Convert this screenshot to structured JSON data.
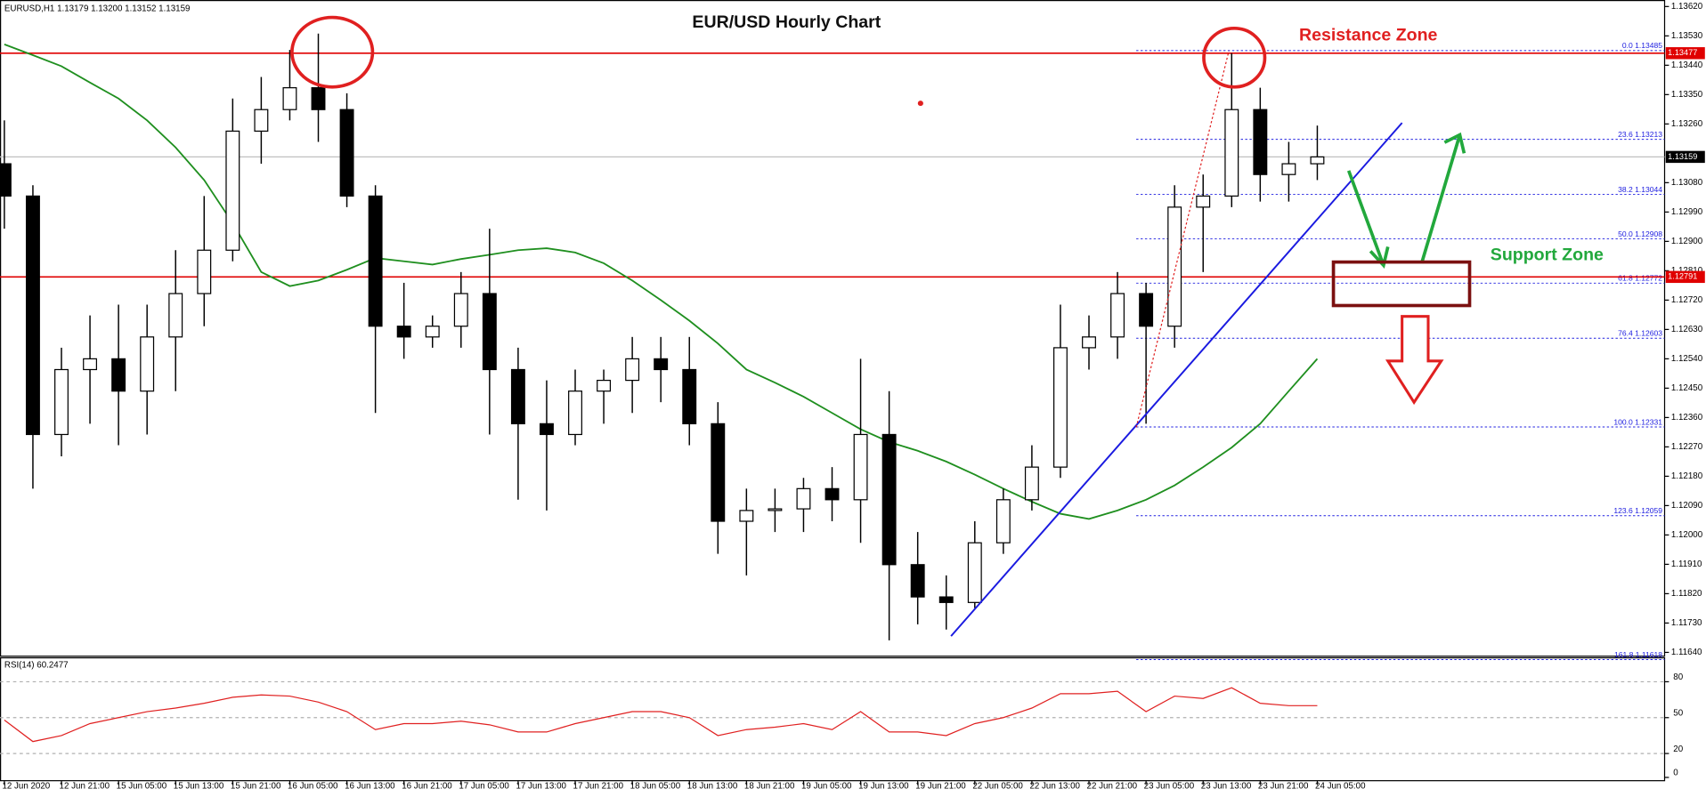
{
  "chart_data": [
    {
      "type": "candlestick",
      "title": "EUR/USD Hourly Chart",
      "header": "EURUSD,H1  1.13179 1.13200 1.13152 1.13159",
      "annotations": [
        "Resistance Zone",
        "Support Zone"
      ],
      "categories": [
        "12 Jun 2020",
        null,
        "12 Jun 21:00",
        null,
        "15 Jun 05:00",
        null,
        "15 Jun 13:00",
        null,
        "15 Jun 21:00",
        null,
        "16 Jun 05:00",
        null,
        "16 Jun 13:00",
        null,
        "16 Jun 21:00",
        null,
        "17 Jun 05:00",
        null,
        "17 Jun 13:00",
        null,
        "17 Jun 21:00",
        null,
        "18 Jun 05:00",
        null,
        "18 Jun 13:00",
        null,
        "18 Jun 21:00",
        null,
        "19 Jun 05:00",
        null,
        "19 Jun 13:00",
        null,
        "19 Jun 21:00",
        null,
        "22 Jun 05:00",
        null,
        "22 Jun 13:00",
        null,
        "22 Jun 21:00",
        null,
        "23 Jun 05:00",
        null,
        "23 Jun 13:00",
        null,
        "23 Jun 21:00",
        null,
        "24 Jun 05:00"
      ],
      "open": [
        1.13138,
        1.13039,
        1.12308,
        1.12507,
        1.1254,
        1.12441,
        1.12607,
        1.1274,
        1.12873,
        1.13238,
        1.13304,
        1.13371,
        1.13304,
        1.13039,
        1.1264,
        1.12607,
        1.1264,
        1.1274,
        1.12507,
        1.12341,
        1.12308,
        1.12441,
        1.12474,
        1.1254,
        1.12507,
        1.12341,
        1.12042,
        1.12075,
        1.1208,
        1.12142,
        1.12108,
        1.12308,
        1.11909,
        1.1181,
        1.11793,
        1.11976,
        1.12108,
        1.12208,
        1.12574,
        1.12607,
        1.1274,
        1.1264,
        1.13005,
        1.13039,
        1.13304,
        1.13105,
        1.13138
      ],
      "high": [
        1.13271,
        1.13072,
        1.12574,
        1.12673,
        1.12706,
        1.12706,
        1.12873,
        1.13039,
        1.13338,
        1.13404,
        1.13487,
        1.13537,
        1.13354,
        1.13072,
        1.12773,
        1.12673,
        1.12806,
        1.12939,
        1.12574,
        1.12474,
        1.12507,
        1.12507,
        1.12607,
        1.12607,
        1.12607,
        1.12407,
        1.12142,
        1.12142,
        1.12175,
        1.12208,
        1.1254,
        1.12441,
        1.12009,
        1.11876,
        1.12042,
        1.12142,
        1.12275,
        1.12706,
        1.12673,
        1.12806,
        1.12773,
        1.13072,
        1.13105,
        1.13477,
        1.13371,
        1.13205,
        1.13255
      ],
      "low": [
        1.12939,
        1.12142,
        1.12241,
        1.12341,
        1.12275,
        1.12308,
        1.12441,
        1.1264,
        1.12839,
        1.13138,
        1.13271,
        1.13205,
        1.13005,
        1.12374,
        1.1254,
        1.12574,
        1.12574,
        1.12308,
        1.12108,
        1.12075,
        1.12275,
        1.12341,
        1.12374,
        1.12407,
        1.12275,
        1.11942,
        1.11876,
        1.12009,
        1.12009,
        1.12042,
        1.11976,
        1.11677,
        1.11726,
        1.1171,
        1.11776,
        1.11942,
        1.12075,
        1.12175,
        1.12507,
        1.1254,
        1.12341,
        1.12574,
        1.12806,
        1.13005,
        1.13022,
        1.13022,
        1.13088
      ],
      "close": [
        1.13039,
        1.12308,
        1.12507,
        1.1254,
        1.12441,
        1.12607,
        1.1274,
        1.12873,
        1.13238,
        1.13304,
        1.13371,
        1.13304,
        1.13039,
        1.1264,
        1.12607,
        1.1264,
        1.1274,
        1.12507,
        1.12341,
        1.12308,
        1.12441,
        1.12474,
        1.1254,
        1.12507,
        1.12341,
        1.12042,
        1.12075,
        1.1208,
        1.12142,
        1.12108,
        1.12308,
        1.11909,
        1.1181,
        1.11793,
        1.11976,
        1.12108,
        1.12208,
        1.12574,
        1.12607,
        1.1274,
        1.1264,
        1.13005,
        1.13039,
        1.13304,
        1.13105,
        1.13138,
        1.13159
      ],
      "moving_average": {
        "color": "#1f8f1f",
        "values": [
          1.13504,
          1.13471,
          1.13437,
          1.13387,
          1.13338,
          1.13271,
          1.13188,
          1.13088,
          1.12956,
          1.12806,
          1.12763,
          1.1278,
          1.12813,
          1.12849,
          1.12839,
          1.12829,
          1.12846,
          1.12859,
          1.12873,
          1.12879,
          1.12866,
          1.12833,
          1.1278,
          1.1272,
          1.12657,
          1.12587,
          1.12507,
          1.12467,
          1.12424,
          1.12374,
          1.12324,
          1.12285,
          1.12258,
          1.12225,
          1.12185,
          1.12142,
          1.12102,
          1.12065,
          1.12049,
          1.12075,
          1.12108,
          1.12152,
          1.12208,
          1.12268,
          1.12341,
          1.12441,
          1.1254
        ]
      },
      "levels": [
        {
          "value": 1.13477,
          "color": "#e00000"
        },
        {
          "value": 1.12791,
          "color": "#e00000"
        }
      ],
      "last_price": 1.13159,
      "fibonacci": {
        "color": "#2020e0",
        "levels": [
          {
            "label": "0.0 1.13485",
            "value": 1.13485
          },
          {
            "label": "23.6 1.13213",
            "value": 1.13213
          },
          {
            "label": "38.2 1.13044",
            "value": 1.13044
          },
          {
            "label": "50.0 1.12908",
            "value": 1.12908
          },
          {
            "label": "61.8 1.12772",
            "value": 1.12772
          },
          {
            "label": "76.4 1.12603",
            "value": 1.12603
          },
          {
            "label": "100.0 1.12331",
            "value": 1.12331
          },
          {
            "label": "123.6 1.12059",
            "value": 1.12059
          },
          {
            "label": "161.8 1.11618",
            "value": 1.11618
          }
        ]
      },
      "ylim": [
        1.1163,
        1.1364
      ],
      "yticks": [
        {
          "value": 1.1362,
          "label": "1.13620"
        },
        {
          "value": 1.1353,
          "label": "1.13530"
        },
        {
          "value": 1.1344,
          "label": "1.13440"
        },
        {
          "value": 1.1335,
          "label": "1.13350"
        },
        {
          "value": 1.1326,
          "label": "1.13260"
        },
        {
          "value": 1.1308,
          "label": "1.13080"
        },
        {
          "value": 1.1299,
          "label": "1.12990"
        },
        {
          "value": 1.129,
          "label": "1.12900"
        },
        {
          "value": 1.1281,
          "label": "1.12810"
        },
        {
          "value": 1.1272,
          "label": "1.12720"
        },
        {
          "value": 1.1263,
          "label": "1.12630"
        },
        {
          "value": 1.1254,
          "label": "1.12540"
        },
        {
          "value": 1.1245,
          "label": "1.12450"
        },
        {
          "value": 1.1236,
          "label": "1.12360"
        },
        {
          "value": 1.1227,
          "label": "1.12270"
        },
        {
          "value": 1.1218,
          "label": "1.12180"
        },
        {
          "value": 1.1209,
          "label": "1.12090"
        },
        {
          "value": 1.12,
          "label": "1.12000"
        },
        {
          "value": 1.1191,
          "label": "1.11910"
        },
        {
          "value": 1.1182,
          "label": "1.11820"
        },
        {
          "value": 1.1173,
          "label": "1.11730"
        },
        {
          "value": 1.1164,
          "label": "1.11640"
        }
      ],
      "grid": false
    },
    {
      "type": "line",
      "title": "RSI(14) 60.2477",
      "color": "#e02020",
      "values": [
        48,
        30,
        35,
        45,
        50,
        55,
        58,
        62,
        67,
        69,
        68,
        63,
        55,
        40,
        45,
        45,
        47,
        44,
        38,
        38,
        45,
        50,
        55,
        55,
        50,
        35,
        40,
        42,
        45,
        40,
        55,
        38,
        38,
        35,
        45,
        50,
        58,
        70,
        70,
        72,
        55,
        68,
        66,
        75,
        62,
        60,
        60
      ],
      "ylim": [
        0,
        100
      ],
      "yticks": [
        0,
        20,
        50,
        80
      ],
      "grid": true
    }
  ]
}
